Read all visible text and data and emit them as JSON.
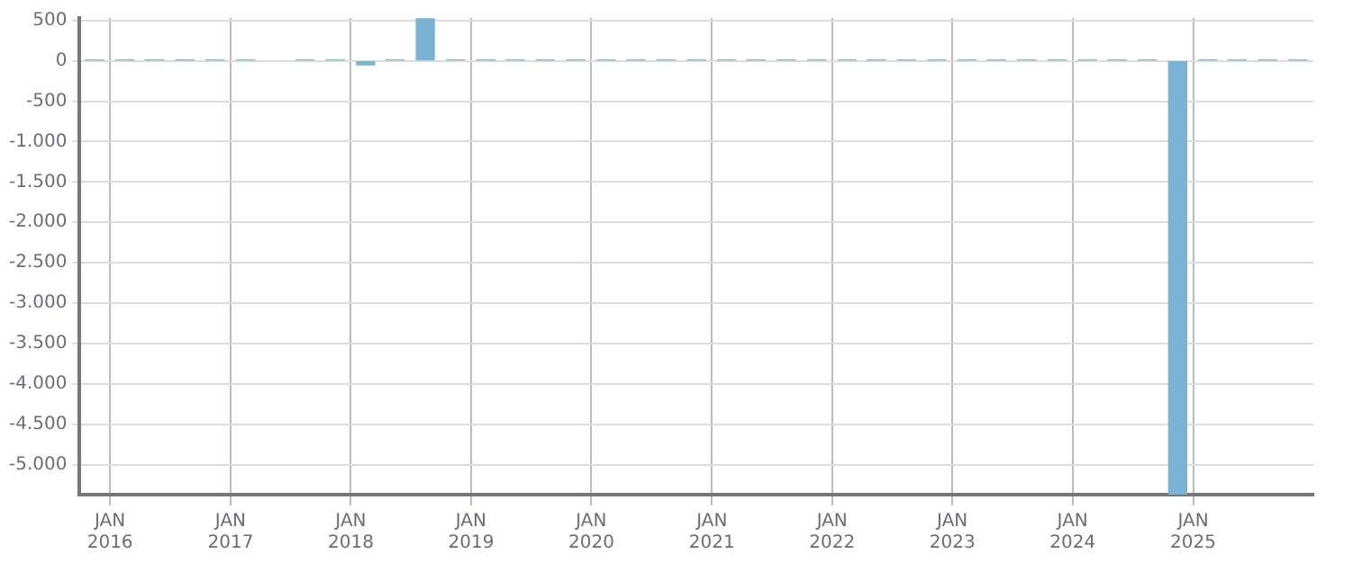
{
  "chart_data": {
    "type": "bar",
    "color": "#7ab3d4",
    "x": [
      "2015-11-15",
      "2016-02-15",
      "2016-05-15",
      "2016-08-15",
      "2016-11-15",
      "2017-02-15",
      "2017-05-15",
      "2017-08-15",
      "2017-11-15",
      "2018-02-15",
      "2018-05-15",
      "2018-08-15",
      "2018-11-15",
      "2019-02-15",
      "2019-05-15",
      "2019-08-15",
      "2019-11-15",
      "2020-02-15",
      "2020-05-15",
      "2020-08-15",
      "2020-11-15",
      "2021-02-15",
      "2021-05-15",
      "2021-08-15",
      "2021-11-15",
      "2022-02-15",
      "2022-05-15",
      "2022-08-15",
      "2022-11-15",
      "2023-02-15",
      "2023-05-15",
      "2023-08-15",
      "2023-11-15",
      "2024-02-15",
      "2024-05-15",
      "2024-08-15",
      "2024-11-15",
      "2025-02-15",
      "2025-05-15",
      "2025-08-15",
      "2025-11-15"
    ],
    "values": [
      10,
      10,
      10,
      10,
      10,
      10,
      null,
      10,
      10,
      -50,
      10,
      520,
      10,
      10,
      10,
      10,
      10,
      10,
      10,
      10,
      10,
      10,
      10,
      10,
      10,
      10,
      10,
      10,
      10,
      10,
      10,
      10,
      10,
      10,
      10,
      10,
      -5370,
      10,
      10,
      10,
      10
    ],
    "xlim": [
      "2015-10-01",
      "2026-01-01"
    ],
    "xticks": [
      {
        "value": "2016-01-01",
        "label": "JAN 2016"
      },
      {
        "value": "2017-01-01",
        "label": "JAN 2017"
      },
      {
        "value": "2018-01-01",
        "label": "JAN 2018"
      },
      {
        "value": "2019-01-01",
        "label": "JAN 2019"
      },
      {
        "value": "2020-01-01",
        "label": "JAN 2020"
      },
      {
        "value": "2021-01-01",
        "label": "JAN 2021"
      },
      {
        "value": "2022-01-01",
        "label": "JAN 2022"
      },
      {
        "value": "2023-01-01",
        "label": "JAN 2023"
      },
      {
        "value": "2024-01-01",
        "label": "JAN 2024"
      },
      {
        "value": "2025-01-01",
        "label": "JAN 2025"
      }
    ],
    "ylim": [
      -5370,
      530
    ],
    "yticks": [
      500,
      0,
      -500,
      {
        "value": -1000,
        "label": "-1.000"
      },
      {
        "value": -1500,
        "label": "-1.500"
      },
      {
        "value": -2000,
        "label": "-2.000"
      },
      {
        "value": -2500,
        "label": "-2.500"
      },
      {
        "value": -3000,
        "label": "-3.000"
      },
      {
        "value": -3500,
        "label": "-3.500"
      },
      {
        "value": -4000,
        "label": "-4.000"
      },
      {
        "value": -4500,
        "label": "-4.500"
      },
      {
        "value": -5000,
        "label": "-5.000"
      }
    ],
    "grid": true,
    "legend": false
  }
}
